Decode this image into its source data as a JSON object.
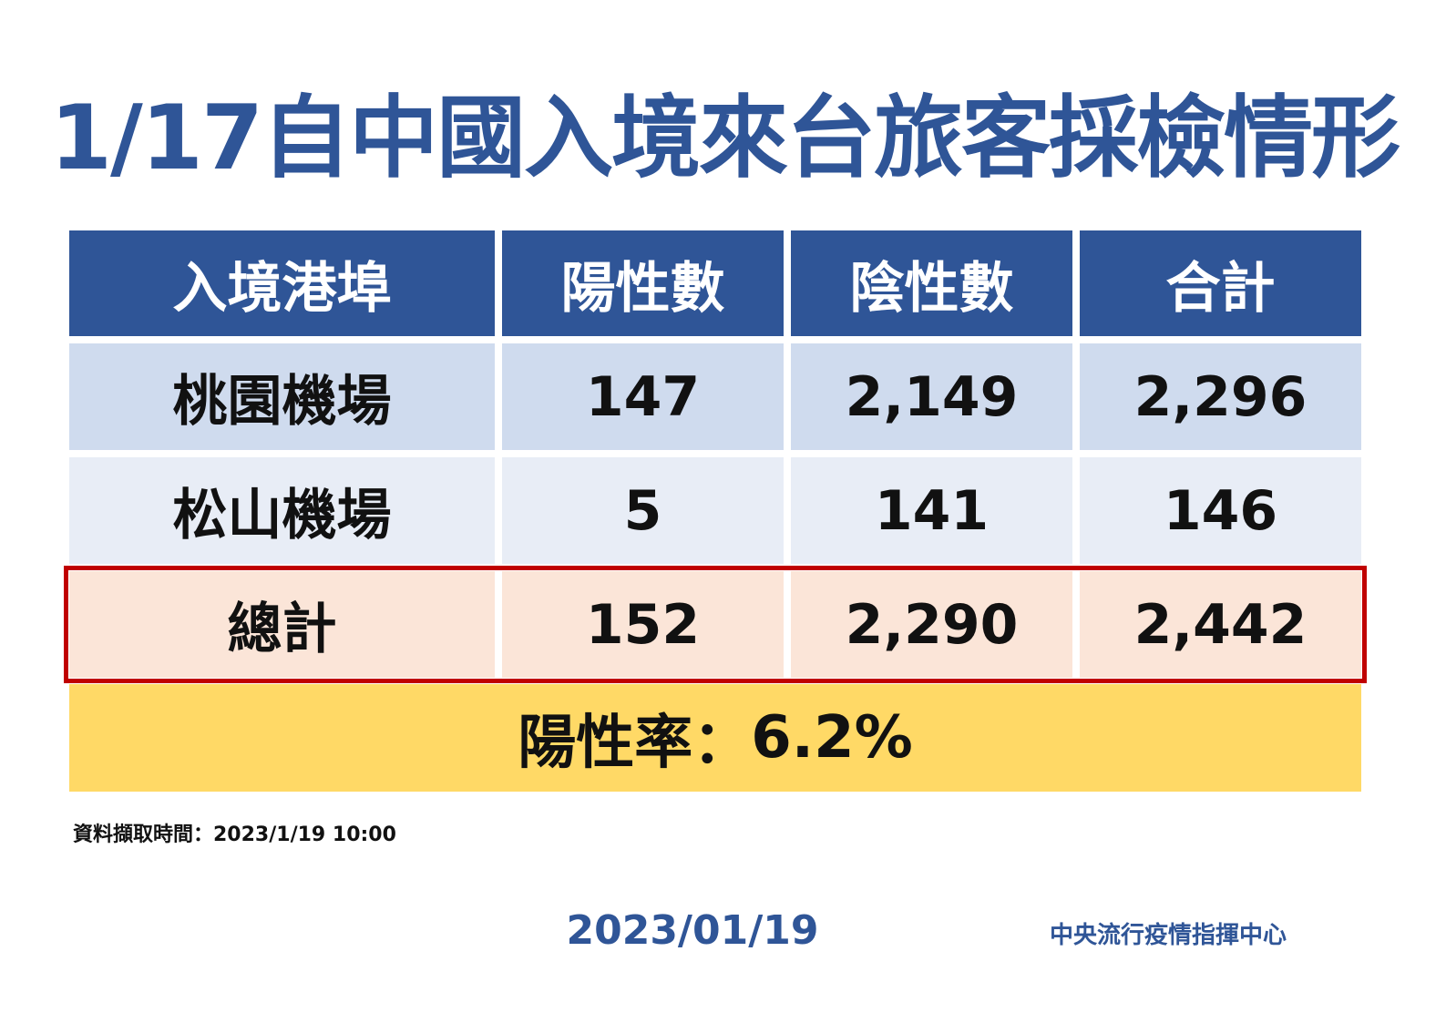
{
  "title": "1/17自中國入境來台旅客採檢情形",
  "table": {
    "headers": [
      "入境港埠",
      "陽性數",
      "陰性數",
      "合計"
    ],
    "rows": [
      {
        "port": "桃園機場",
        "positive": "147",
        "negative": "2,149",
        "total": "2,296"
      },
      {
        "port": "松山機場",
        "positive": "5",
        "negative": "141",
        "total": "146"
      }
    ],
    "total_row": {
      "label": "總計",
      "positive": "152",
      "negative": "2,290",
      "total": "2,442"
    }
  },
  "positivity": {
    "label": "陽性率：",
    "value": "6.2%"
  },
  "source_time": "資料擷取時間：2023/1/19 10:00",
  "footer": {
    "date": "2023/01/19",
    "organization": "中央流行疫情指揮中心"
  },
  "colors": {
    "title_blue": "#2f5597",
    "header_bg": "#2f5597",
    "row1_bg": "#cfdbee",
    "row2_bg": "#e8edf6",
    "total_bg": "#fbe5d8",
    "total_border": "#c00000",
    "rate_bg": "#ffd966"
  },
  "chart_data": {
    "type": "table",
    "title": "1/17自中國入境來台旅客採檢情形",
    "columns": [
      "入境港埠",
      "陽性數",
      "陰性數",
      "合計"
    ],
    "rows": [
      [
        "桃園機場",
        147,
        2149,
        2296
      ],
      [
        "松山機場",
        5,
        141,
        146
      ],
      [
        "總計",
        152,
        2290,
        2442
      ]
    ],
    "positivity_rate": "6.2%"
  }
}
